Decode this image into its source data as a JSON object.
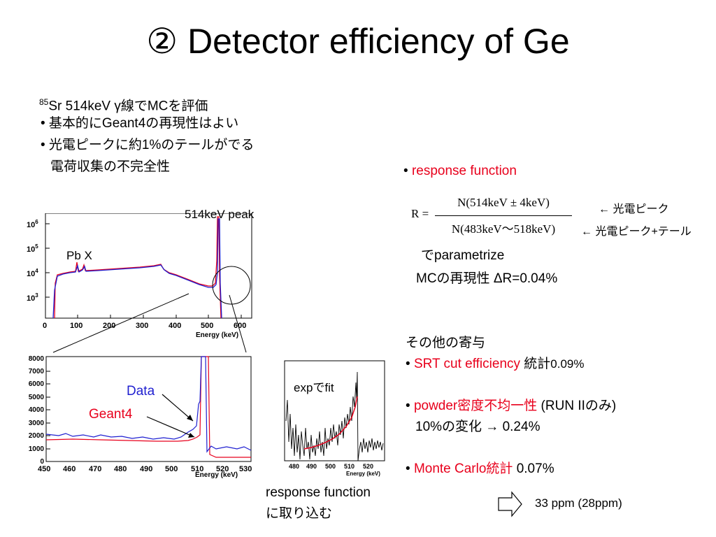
{
  "title": "② Detector efficiency of Ge",
  "intro": {
    "sup": "85",
    "line1": "Sr  514keV γ線でMCを評価",
    "bullet1": "• 基本的にGeant4の再現性はよい",
    "bullet2": "• 光電ピークに約1%のテールがでる",
    "bullet2_cont": "電荷収集の不完全性"
  },
  "plot_top": {
    "peak_label": "514keV peak",
    "pbx_label": "Pb X",
    "xlabel": "Energy (keV)",
    "x_ticks": [
      "0",
      "100",
      "200",
      "300",
      "400",
      "500",
      "600"
    ],
    "y_ticks": [
      {
        "base": "10",
        "exp": "3"
      },
      {
        "base": "10",
        "exp": "4"
      },
      {
        "base": "10",
        "exp": "5"
      },
      {
        "base": "10",
        "exp": "6"
      }
    ]
  },
  "plot_zoom": {
    "xlabel": "Energy (keV)",
    "x_ticks": [
      "450",
      "460",
      "470",
      "480",
      "490",
      "500",
      "510",
      "520",
      "530"
    ],
    "y_ticks": [
      "0",
      "1000",
      "2000",
      "3000",
      "4000",
      "5000",
      "6000",
      "7000",
      "8000"
    ],
    "data_label": "Data",
    "geant4_label": "Geant4"
  },
  "plot_fit": {
    "label": "expでfit",
    "xlabel": "Energy (keV)",
    "x_ticks": [
      "480",
      "490",
      "500",
      "510",
      "520"
    ]
  },
  "response": {
    "bullet": "• ",
    "title": "response function",
    "formula_lhs": "R =",
    "numerator": "N(514keV ± 4keV)",
    "denominator": "N(483keV〜518keV)",
    "note_num": "← 光電ピーク",
    "note_den": "← 光電ピーク+テール",
    "param_line": "でparametrize",
    "mc_line": "MCの再現性  ΔR=0.04%"
  },
  "fit_caption": {
    "line1": "response function",
    "line2": "に取り込む"
  },
  "contrib": {
    "header": "その他の寄与",
    "item1_bullet": "• ",
    "item1_red": "SRT cut efficiency",
    "item1_rest": "  統計",
    "item1_val": "0.09%",
    "item2_bullet": "• ",
    "item2_red": "powder密度不均一性",
    "item2_rest": " (RUN IIのみ)",
    "item2_line2": "10%の変化 → 0.24%",
    "item3_bullet": "• ",
    "item3_red": "Monte Carlo統計",
    "item3_rest": " 0.07%"
  },
  "total": "33 ppm (28ppm)",
  "colors": {
    "data": "#1f1fd0",
    "geant4": "#e8001c"
  }
}
